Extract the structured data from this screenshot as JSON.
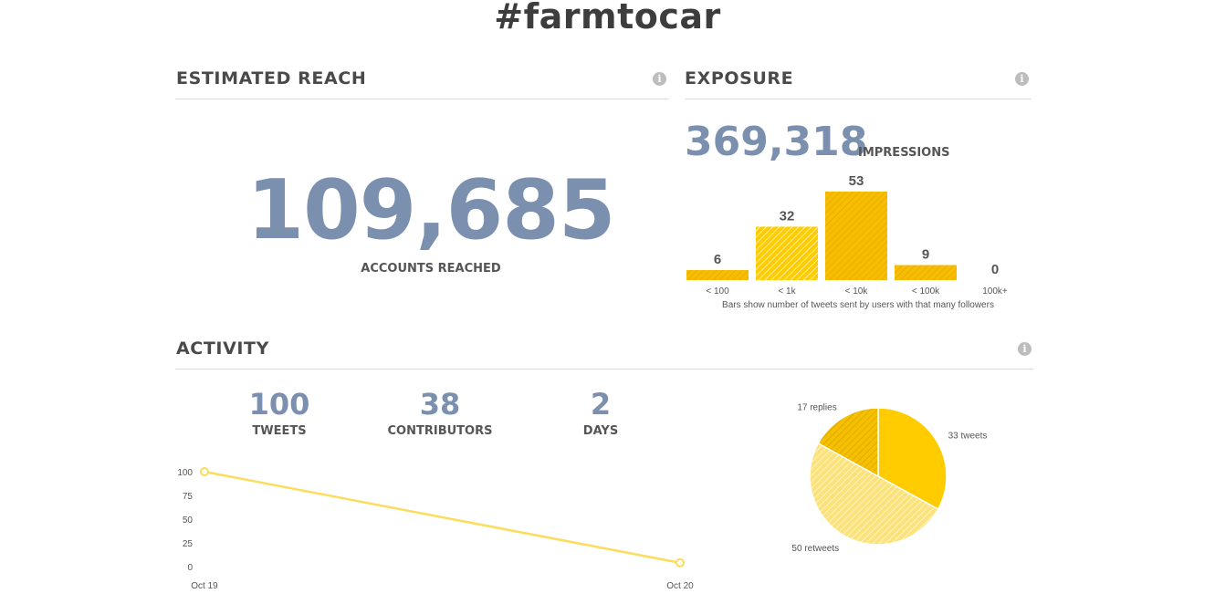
{
  "title": "#farmtocar",
  "reach": {
    "heading": "ESTIMATED REACH",
    "value": "109,685",
    "label": "ACCOUNTS REACHED",
    "info_icon": "i"
  },
  "exposure": {
    "heading": "EXPOSURE",
    "impressions_value": "369,318",
    "impressions_label": "IMPRESSIONS",
    "note": "Bars show number of tweets sent by users with that many followers",
    "info_icon": "i"
  },
  "activity": {
    "heading": "ACTIVITY",
    "info_icon": "i",
    "stats": [
      {
        "value": "100",
        "label": "TWEETS"
      },
      {
        "value": "38",
        "label": "CONTRIBUTORS"
      },
      {
        "value": "2",
        "label": "DAYS"
      }
    ]
  },
  "colors": {
    "accent": "#ffcc00",
    "accent_dark": "#f2b705",
    "line": "#fbdc5c",
    "number_blue": "#7b8fae"
  },
  "chart_data": [
    {
      "type": "bar",
      "categories": [
        "< 100",
        "< 1k",
        "< 10k",
        "< 100k",
        "100k+"
      ],
      "values": [
        6,
        32,
        53,
        9,
        0
      ],
      "title": "",
      "xlabel": "",
      "ylabel": ""
    },
    {
      "type": "line",
      "x": [
        "Oct 19",
        "Oct 20"
      ],
      "series": [
        {
          "values": [
            100,
            4
          ]
        }
      ],
      "ylim": [
        0,
        100
      ],
      "yticks": [
        0,
        25,
        50,
        75,
        100
      ],
      "xlabel": "",
      "ylabel": ""
    },
    {
      "type": "pie",
      "slices": [
        {
          "label": "33 tweets",
          "value": 33,
          "style": "solid"
        },
        {
          "label": "50 retweets",
          "value": 50,
          "style": "hatched-light"
        },
        {
          "label": "17 replies",
          "value": 17,
          "style": "hatched-dark"
        }
      ]
    }
  ]
}
